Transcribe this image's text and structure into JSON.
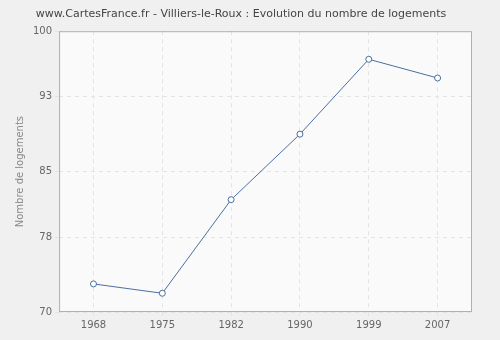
{
  "chart_data": {
    "type": "line",
    "title": "www.CartesFrance.fr - Villiers-le-Roux : Evolution du nombre de logements",
    "y_label": "Nombre de logements",
    "categories": [
      "1968",
      "1975",
      "1982",
      "1990",
      "1999",
      "2007"
    ],
    "values": [
      73,
      72,
      82,
      89,
      97,
      95
    ],
    "color": "#4a70a0",
    "marker": "circle",
    "ylim": [
      70,
      100
    ],
    "yticks": [
      70,
      78,
      85,
      93,
      100
    ],
    "grid": true
  }
}
